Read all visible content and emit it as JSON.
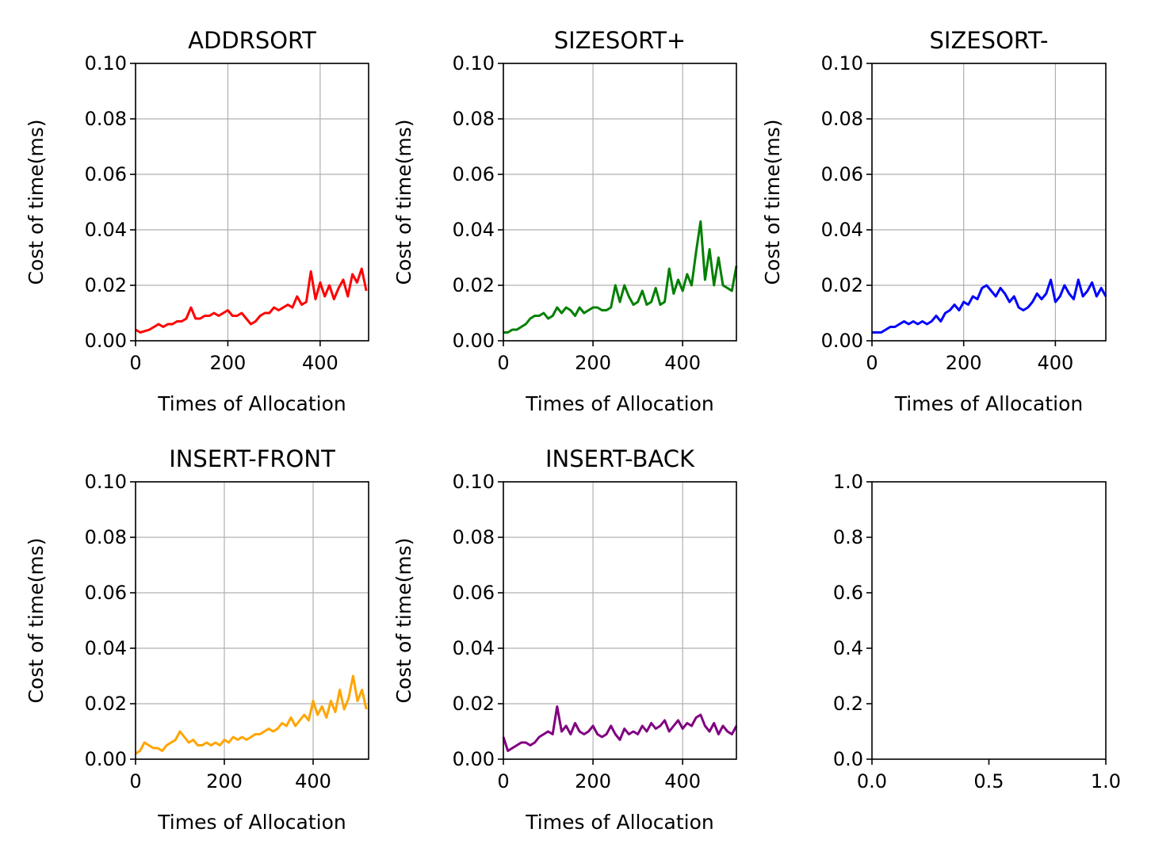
{
  "chart_data": [
    {
      "type": "line",
      "title": "ADDRSORT",
      "xlabel": "Times of Allocation",
      "ylabel": "Cost of time(ms)",
      "xlim": [
        0,
        505
      ],
      "ylim": [
        0,
        0.1
      ],
      "xticks": [
        "0",
        "200",
        "400"
      ],
      "yticks": [
        "0.00",
        "0.02",
        "0.04",
        "0.06",
        "0.08",
        "0.10"
      ],
      "grid": true,
      "color": "#ff0000",
      "series": [
        {
          "x": [
            0,
            10,
            20,
            30,
            40,
            50,
            60,
            70,
            80,
            90,
            100,
            110,
            120,
            130,
            140,
            150,
            160,
            170,
            180,
            190,
            200,
            210,
            220,
            230,
            240,
            250,
            260,
            270,
            280,
            290,
            300,
            310,
            320,
            330,
            340,
            350,
            360,
            370,
            380,
            390,
            400,
            410,
            420,
            430,
            440,
            450,
            460,
            470,
            480,
            490,
            500
          ],
          "values": [
            0.004,
            0.003,
            0.0035,
            0.004,
            0.005,
            0.006,
            0.005,
            0.006,
            0.006,
            0.007,
            0.007,
            0.008,
            0.012,
            0.008,
            0.008,
            0.009,
            0.009,
            0.01,
            0.009,
            0.01,
            0.011,
            0.009,
            0.009,
            0.01,
            0.008,
            0.006,
            0.007,
            0.009,
            0.01,
            0.01,
            0.012,
            0.011,
            0.012,
            0.013,
            0.012,
            0.016,
            0.013,
            0.014,
            0.025,
            0.015,
            0.021,
            0.016,
            0.02,
            0.015,
            0.019,
            0.022,
            0.016,
            0.024,
            0.021,
            0.026,
            0.018
          ]
        }
      ]
    },
    {
      "type": "line",
      "title": "SIZESORT+",
      "xlabel": "Times of Allocation",
      "ylabel": "Cost of time(ms)",
      "xlim": [
        0,
        520
      ],
      "ylim": [
        0,
        0.1
      ],
      "xticks": [
        "0",
        "200",
        "400"
      ],
      "yticks": [
        "0.00",
        "0.02",
        "0.04",
        "0.06",
        "0.08",
        "0.10"
      ],
      "grid": true,
      "color": "#008000",
      "series": [
        {
          "x": [
            0,
            10,
            20,
            30,
            40,
            50,
            60,
            70,
            80,
            90,
            100,
            110,
            120,
            130,
            140,
            150,
            160,
            170,
            180,
            190,
            200,
            210,
            220,
            230,
            240,
            250,
            260,
            270,
            280,
            290,
            300,
            310,
            320,
            330,
            340,
            350,
            360,
            370,
            380,
            390,
            400,
            410,
            420,
            430,
            440,
            450,
            460,
            470,
            480,
            490,
            500,
            510,
            520
          ],
          "values": [
            0.003,
            0.003,
            0.004,
            0.004,
            0.005,
            0.006,
            0.008,
            0.009,
            0.009,
            0.01,
            0.008,
            0.009,
            0.012,
            0.01,
            0.012,
            0.011,
            0.009,
            0.012,
            0.01,
            0.011,
            0.012,
            0.012,
            0.011,
            0.011,
            0.012,
            0.02,
            0.014,
            0.02,
            0.016,
            0.013,
            0.014,
            0.018,
            0.013,
            0.014,
            0.019,
            0.013,
            0.014,
            0.026,
            0.017,
            0.022,
            0.018,
            0.024,
            0.02,
            0.032,
            0.043,
            0.022,
            0.033,
            0.02,
            0.03,
            0.02,
            0.019,
            0.018,
            0.027
          ]
        }
      ]
    },
    {
      "type": "line",
      "title": "SIZESORT-",
      "xlabel": "Times of Allocation",
      "ylabel": "Cost of time(ms)",
      "xlim": [
        0,
        510
      ],
      "ylim": [
        0,
        0.1
      ],
      "xticks": [
        "0",
        "200",
        "400"
      ],
      "yticks": [
        "0.00",
        "0.02",
        "0.04",
        "0.06",
        "0.08",
        "0.10"
      ],
      "grid": true,
      "color": "#0000ff",
      "series": [
        {
          "x": [
            0,
            10,
            20,
            30,
            40,
            50,
            60,
            70,
            80,
            90,
            100,
            110,
            120,
            130,
            140,
            150,
            160,
            170,
            180,
            190,
            200,
            210,
            220,
            230,
            240,
            250,
            260,
            270,
            280,
            290,
            300,
            310,
            320,
            330,
            340,
            350,
            360,
            370,
            380,
            390,
            400,
            410,
            420,
            430,
            440,
            450,
            460,
            470,
            480,
            490,
            500,
            510
          ],
          "values": [
            0.003,
            0.003,
            0.003,
            0.004,
            0.005,
            0.005,
            0.006,
            0.007,
            0.006,
            0.007,
            0.006,
            0.007,
            0.006,
            0.007,
            0.009,
            0.007,
            0.01,
            0.011,
            0.013,
            0.011,
            0.014,
            0.013,
            0.016,
            0.015,
            0.019,
            0.02,
            0.018,
            0.016,
            0.019,
            0.017,
            0.014,
            0.016,
            0.012,
            0.011,
            0.012,
            0.014,
            0.017,
            0.015,
            0.017,
            0.022,
            0.014,
            0.016,
            0.02,
            0.017,
            0.015,
            0.022,
            0.016,
            0.018,
            0.021,
            0.016,
            0.019,
            0.016
          ]
        }
      ]
    },
    {
      "type": "line",
      "title": "INSERT-FRONT",
      "xlabel": "Times of Allocation",
      "ylabel": "Cost of time(ms)",
      "xlim": [
        0,
        525
      ],
      "ylim": [
        0,
        0.1
      ],
      "xticks": [
        "0",
        "200",
        "400"
      ],
      "yticks": [
        "0.00",
        "0.02",
        "0.04",
        "0.06",
        "0.08",
        "0.10"
      ],
      "grid": true,
      "color": "#ffa500",
      "series": [
        {
          "x": [
            0,
            10,
            20,
            30,
            40,
            50,
            60,
            70,
            80,
            90,
            100,
            110,
            120,
            130,
            140,
            150,
            160,
            170,
            180,
            190,
            200,
            210,
            220,
            230,
            240,
            250,
            260,
            270,
            280,
            290,
            300,
            310,
            320,
            330,
            340,
            350,
            360,
            370,
            380,
            390,
            400,
            410,
            420,
            430,
            440,
            450,
            460,
            470,
            480,
            490,
            500,
            510,
            520
          ],
          "values": [
            0.002,
            0.003,
            0.006,
            0.005,
            0.004,
            0.004,
            0.003,
            0.005,
            0.006,
            0.007,
            0.01,
            0.008,
            0.006,
            0.007,
            0.005,
            0.005,
            0.006,
            0.005,
            0.006,
            0.005,
            0.007,
            0.006,
            0.008,
            0.007,
            0.008,
            0.007,
            0.008,
            0.009,
            0.009,
            0.01,
            0.011,
            0.01,
            0.011,
            0.013,
            0.012,
            0.015,
            0.012,
            0.014,
            0.016,
            0.014,
            0.021,
            0.016,
            0.019,
            0.015,
            0.021,
            0.017,
            0.025,
            0.018,
            0.022,
            0.03,
            0.021,
            0.025,
            0.018
          ]
        }
      ]
    },
    {
      "type": "line",
      "title": "INSERT-BACK",
      "xlabel": "Times of Allocation",
      "ylabel": "Cost of time(ms)",
      "xlim": [
        0,
        520
      ],
      "ylim": [
        0,
        0.1
      ],
      "xticks": [
        "0",
        "200",
        "400"
      ],
      "yticks": [
        "0.00",
        "0.02",
        "0.04",
        "0.06",
        "0.08",
        "0.10"
      ],
      "grid": true,
      "color": "#800080",
      "series": [
        {
          "x": [
            0,
            10,
            20,
            30,
            40,
            50,
            60,
            70,
            80,
            90,
            100,
            110,
            120,
            130,
            140,
            150,
            160,
            170,
            180,
            190,
            200,
            210,
            220,
            230,
            240,
            250,
            260,
            270,
            280,
            290,
            300,
            310,
            320,
            330,
            340,
            350,
            360,
            370,
            380,
            390,
            400,
            410,
            420,
            430,
            440,
            450,
            460,
            470,
            480,
            490,
            500,
            510,
            520
          ],
          "values": [
            0.008,
            0.003,
            0.004,
            0.005,
            0.006,
            0.006,
            0.005,
            0.006,
            0.008,
            0.009,
            0.01,
            0.009,
            0.019,
            0.01,
            0.012,
            0.009,
            0.013,
            0.01,
            0.009,
            0.01,
            0.012,
            0.009,
            0.008,
            0.009,
            0.012,
            0.009,
            0.007,
            0.011,
            0.009,
            0.01,
            0.009,
            0.012,
            0.01,
            0.013,
            0.011,
            0.012,
            0.014,
            0.01,
            0.012,
            0.014,
            0.011,
            0.013,
            0.012,
            0.015,
            0.016,
            0.012,
            0.01,
            0.013,
            0.009,
            0.012,
            0.01,
            0.009,
            0.012
          ]
        }
      ]
    },
    {
      "type": "line",
      "title": "",
      "xlabel": "",
      "ylabel": "",
      "xlim": [
        0,
        1
      ],
      "ylim": [
        0,
        1
      ],
      "xticks": [
        "0.0",
        "0.5",
        "1.0"
      ],
      "yticks": [
        "0.0",
        "0.2",
        "0.4",
        "0.6",
        "0.8",
        "1.0"
      ],
      "grid": false,
      "color": "#000000",
      "series": []
    }
  ]
}
